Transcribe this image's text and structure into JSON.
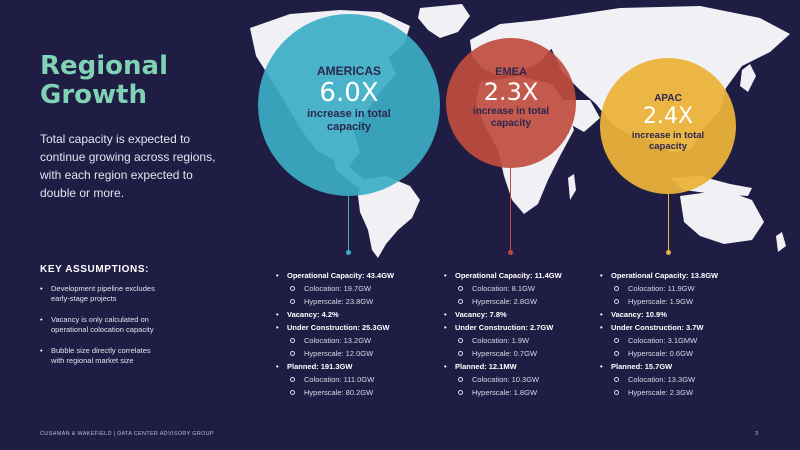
{
  "title": {
    "line1": "Regional",
    "line2": "Growth"
  },
  "intro": "Total capacity is expected to continue growing across regions, with each region expected to double or more.",
  "assumptions": {
    "heading": "KEY ASSUMPTIONS:",
    "items": [
      "Development pipeline excludes early-stage projects",
      "Vacancy is only calculated on operational colocation capacity",
      "Bubble size directly correlates with regional market size"
    ]
  },
  "regions": {
    "americas": {
      "name": "AMERICAS",
      "multiplier": "6.0X",
      "description": "increase in total capacity",
      "color": "#3caec4",
      "operational": "Operational Capacity: 43.4GW",
      "operational_colocation": "Colocation: 19.7GW",
      "operational_hyperscale": "Hyperscale: 23.8GW",
      "vacancy": "Vacancy: 4.2%",
      "construction": "Under Construction: 25.3GW",
      "construction_colocation": "Colocation: 13.2GW",
      "construction_hyperscale": "Hyperscale: 12.0GW",
      "planned": "Planned: 191.3GW",
      "planned_colocation": "Colocation: 111.0GW",
      "planned_hyperscale": "Hyperscale: 80.2GW"
    },
    "emea": {
      "name": "EMEA",
      "multiplier": "2.3X",
      "description": "increase in total capacity",
      "color": "#c04c3e",
      "operational": "Operational Capacity: 11.4GW",
      "operational_colocation": "Colocation: 8.1GW",
      "operational_hyperscale": "Hyperscale: 2.8GW",
      "vacancy": "Vacancy: 7.8%",
      "construction": "Under Construction: 2.7GW",
      "construction_colocation": "Colocation: 1.9W",
      "construction_hyperscale": "Hyperscale: 0.7GW",
      "planned": "Planned: 12.1MW",
      "planned_colocation": "Colocation: 10.3GW",
      "planned_hyperscale": "Hyperscale: 1.8GW"
    },
    "apac": {
      "name": "APAC",
      "multiplier": "2.4X",
      "description": "increase in total capacity",
      "color": "#eab23a",
      "operational": "Operational Capacity: 13.8GW",
      "operational_colocation": "Colocation: 11.9GW",
      "operational_hyperscale": "Hyperscale: 1.9GW",
      "vacancy": "Vacancy: 10.9%",
      "construction": "Under Construction: 3.7W",
      "construction_colocation": "Colocation: 3.1GMW",
      "construction_hyperscale": "Hyperscale: 0.6GW",
      "planned": "Planned: 15.7GW",
      "planned_colocation": "Colocation: 13.3GW",
      "planned_hyperscale": "Hyperscale: 2.3GW"
    }
  },
  "footer": "CUSHMAN & WAKEFIELD | DATA CENTER ADVISORY GROUP",
  "page_number": "3",
  "colors": {
    "background": "#201d45",
    "title": "#7fd3b4",
    "map": "#f1f1f5"
  }
}
